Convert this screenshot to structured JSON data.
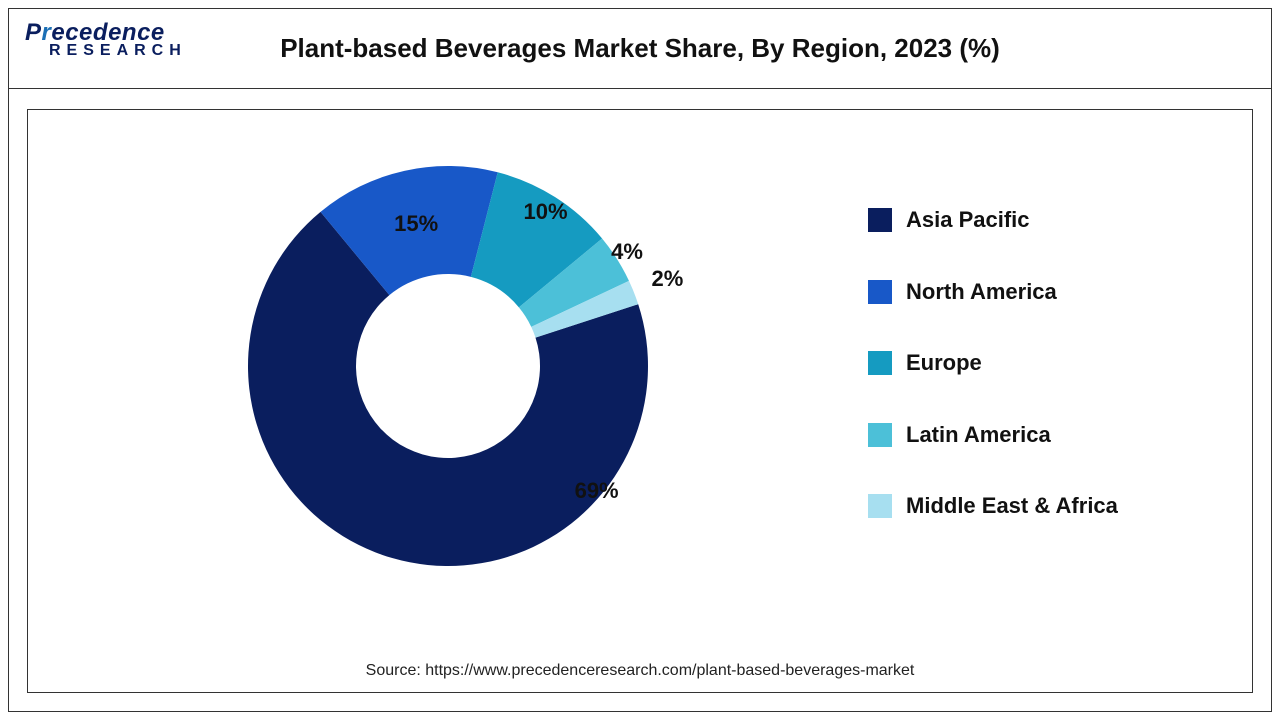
{
  "logo": {
    "brand_line1_pre": "P",
    "brand_line1_mid": "r",
    "brand_line1_post": "ecedence",
    "brand_line2": "RESEARCH"
  },
  "chart": {
    "type": "donut",
    "title": "Plant-based Beverages Market Share, By Region, 2023 (%)",
    "title_fontsize": 26,
    "background_color": "#ffffff",
    "inner_radius_ratio": 0.46,
    "start_angle_deg": 72,
    "direction": "clockwise",
    "label_fontsize": 22,
    "label_fontweight": 700,
    "series": [
      {
        "name": "Asia Pacific",
        "value": 69,
        "label": "69%",
        "color": "#0a1e5e"
      },
      {
        "name": "North America",
        "value": 15,
        "label": "15%",
        "color": "#1858c8"
      },
      {
        "name": "Europe",
        "value": 10,
        "label": "10%",
        "color": "#159bc1"
      },
      {
        "name": "Latin America",
        "value": 4,
        "label": "4%",
        "color": "#4cc0d8"
      },
      {
        "name": "Middle East & Africa",
        "value": 2,
        "label": "2%",
        "color": "#a7dff0"
      }
    ],
    "legend": {
      "position": "right",
      "swatch_size": 24,
      "fontsize": 22,
      "fontweight": 700
    }
  },
  "source": "Source: https://www.precedenceresearch.com/plant-based-beverages-market"
}
